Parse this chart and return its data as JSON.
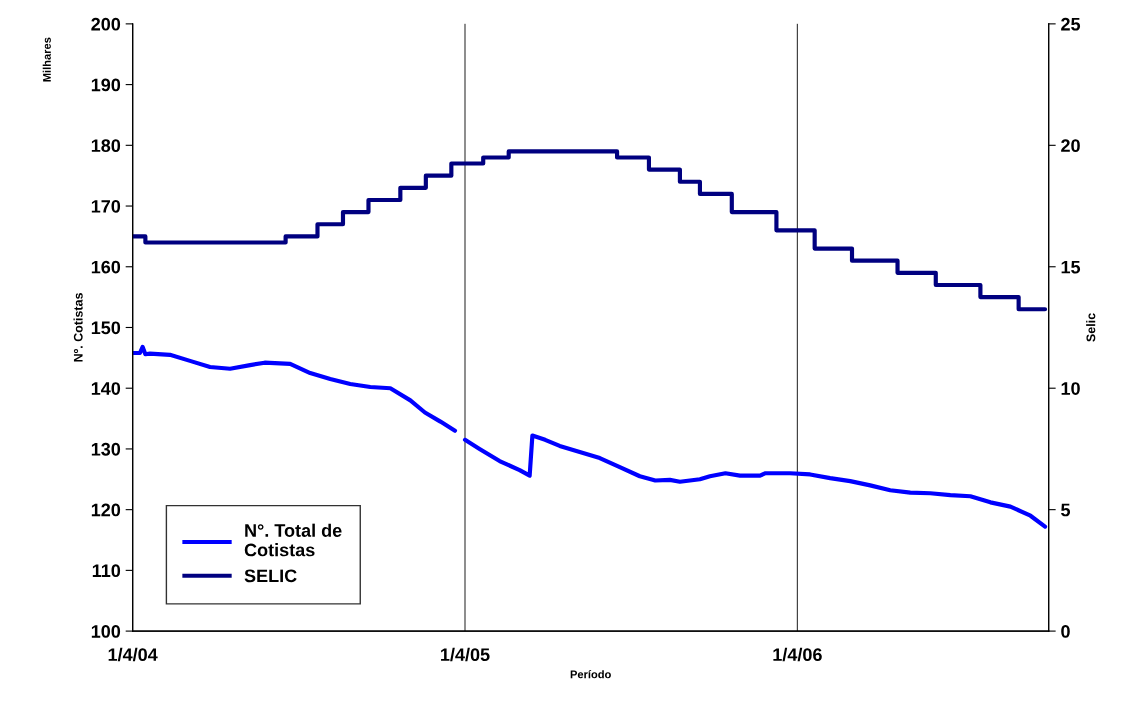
{
  "chart_data": {
    "type": "line",
    "xlabel": "Período",
    "ylabel": "Nº. Cotistas",
    "y2label": "Selic",
    "annotations": [
      "Milhares"
    ],
    "xlim": [
      "2004-04-01",
      "2007-01-02"
    ],
    "xticks": [
      {
        "value": "2004-04-01",
        "label": "1/4/04"
      },
      {
        "value": "2005-04-01",
        "label": "1/4/05"
      },
      {
        "value": "2006-04-01",
        "label": "1/4/06"
      }
    ],
    "ylim": [
      100,
      200
    ],
    "yticks": [
      100,
      110,
      120,
      130,
      140,
      150,
      160,
      170,
      180,
      190,
      200
    ],
    "y2lim": [
      0,
      25
    ],
    "y2ticks": [
      0,
      5,
      10,
      15,
      20,
      25
    ],
    "grid": "x",
    "legend": "bottom left",
    "series": [
      {
        "name": "N°. Total de\nCotistas",
        "color": "#0000ff",
        "x": [
          "2004-04-01",
          "2004-04-09",
          "2004-04-12",
          "2004-04-15",
          "2004-04-20",
          "2004-05-12",
          "2004-06-03",
          "2004-06-25",
          "2004-07-17",
          "2004-08-08",
          "2004-08-24",
          "2004-09-21",
          "2004-10-13",
          "2004-11-04",
          "2004-11-26",
          "2004-12-18",
          "2005-01-09",
          "2005-01-31",
          "2005-02-16",
          "2005-03-05",
          "2005-03-21",
          "2005-03-26",
          "2005-04-01",
          "2005-04-17",
          "2005-05-09",
          "2005-05-31",
          "2005-06-11",
          "2005-06-14",
          "2005-06-28",
          "2005-07-14",
          "2005-08-05",
          "2005-08-27",
          "2005-09-18",
          "2005-10-10",
          "2005-10-27",
          "2005-11-12",
          "2005-11-23",
          "2005-12-15",
          "2005-12-26",
          "2006-01-12",
          "2006-01-28",
          "2006-02-19",
          "2006-02-25",
          "2006-03-24",
          "2006-04-15",
          "2006-05-07",
          "2006-05-29",
          "2006-06-20",
          "2006-07-12",
          "2006-08-03",
          "2006-08-25",
          "2006-09-16",
          "2006-10-08",
          "2006-10-30",
          "2006-11-21",
          "2006-12-13",
          "2006-12-29"
        ],
        "values": [
          145.8,
          145.8,
          146.8,
          145.6,
          145.7,
          145.5,
          144.5,
          143.5,
          143.2,
          143.8,
          144.2,
          144.0,
          142.5,
          141.5,
          140.7,
          140.2,
          140.0,
          138.0,
          136.0,
          134.5,
          133.0,
          null,
          131.5,
          130.0,
          128.0,
          126.5,
          125.6,
          132.2,
          131.5,
          130.5,
          129.5,
          128.5,
          127.0,
          125.5,
          124.8,
          124.9,
          124.6,
          125.0,
          125.5,
          126.0,
          125.6,
          125.6,
          126.0,
          126.0,
          125.8,
          125.2,
          124.7,
          124.0,
          123.2,
          122.8,
          122.7,
          122.4,
          122.2,
          121.2,
          120.5,
          119.0,
          117.2
        ]
      },
      {
        "name": "SELIC",
        "type": "step",
        "axis": "y2",
        "color": "#000080",
        "x": [
          "2004-04-01",
          "2004-04-15",
          "2004-09-16",
          "2004-10-21",
          "2004-11-18",
          "2004-12-16",
          "2005-01-20",
          "2005-02-17",
          "2005-03-17",
          "2005-04-21",
          "2005-05-19",
          "2005-09-15",
          "2005-10-20",
          "2005-11-23",
          "2005-12-15",
          "2006-01-19",
          "2006-03-09",
          "2006-04-20",
          "2006-05-31",
          "2006-07-20",
          "2006-08-31",
          "2006-10-19",
          "2006-11-30",
          "2006-12-29"
        ],
        "values": [
          16.25,
          16.0,
          16.25,
          16.75,
          17.25,
          17.75,
          18.25,
          18.75,
          19.25,
          19.5,
          19.75,
          19.5,
          19.0,
          18.5,
          18.0,
          17.25,
          16.5,
          15.75,
          15.25,
          14.75,
          14.25,
          13.75,
          13.25,
          13.25
        ]
      }
    ]
  }
}
